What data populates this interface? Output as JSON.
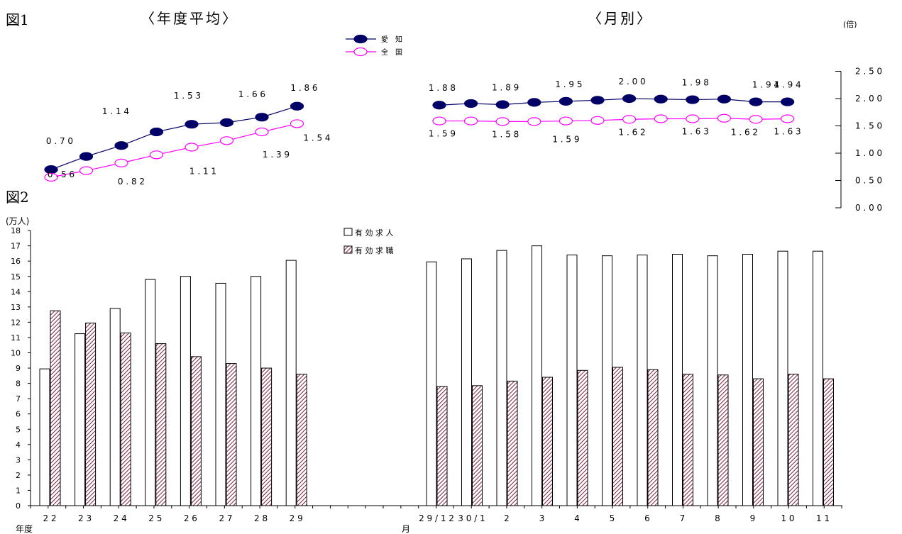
{
  "fig1": {
    "label": "図1",
    "title_annual": "〈年度平均〉",
    "title_monthly": "〈月別〉",
    "unit": "(倍)"
  },
  "fig2": {
    "label": "図2",
    "unit": "(万人)",
    "annual_axis_label": "年度",
    "monthly_axis_label": "月"
  },
  "colors": {
    "aichi": "#000066",
    "national": "#ff00ff",
    "shokushoku": "#7a1f3d",
    "axis": "#000000"
  },
  "chart_data": [
    {
      "type": "line",
      "panel": "annual",
      "categories": [
        "22",
        "23",
        "24",
        "25",
        "26",
        "27",
        "28",
        "29"
      ],
      "series": [
        {
          "name": "愛　知",
          "values": [
            0.7,
            0.94,
            1.14,
            1.39,
            1.53,
            1.56,
            1.66,
            1.86
          ]
        },
        {
          "name": "全　国",
          "values": [
            0.56,
            0.68,
            0.82,
            0.97,
            1.11,
            1.23,
            1.39,
            1.54
          ]
        }
      ],
      "labels": {
        "aichi": [
          {
            "i": 0,
            "text": "0.70"
          },
          {
            "i": 2,
            "text": "1.14"
          },
          {
            "i": 4,
            "text": "1.53"
          },
          {
            "i": 6,
            "text": "1.66"
          },
          {
            "i": 7,
            "text": "1.86"
          }
        ],
        "national": [
          {
            "i": 0,
            "text": "0.56"
          },
          {
            "i": 2,
            "text": "0.82"
          },
          {
            "i": 4,
            "text": "1.11"
          },
          {
            "i": 6,
            "text": "1.39"
          },
          {
            "i": 7,
            "text": "1.54"
          }
        ]
      },
      "ylim": [
        0,
        2.5
      ]
    },
    {
      "type": "line",
      "panel": "monthly",
      "categories": [
        "29/12",
        "30/1",
        "2",
        "3",
        "4",
        "5",
        "6",
        "7",
        "8",
        "9",
        "10",
        "11"
      ],
      "series": [
        {
          "name": "愛　知",
          "values": [
            1.88,
            1.91,
            1.89,
            1.93,
            1.95,
            1.97,
            2.0,
            1.99,
            1.98,
            1.99,
            1.94,
            1.94
          ]
        },
        {
          "name": "全　国",
          "values": [
            1.59,
            1.59,
            1.58,
            1.58,
            1.59,
            1.6,
            1.62,
            1.63,
            1.63,
            1.64,
            1.62,
            1.63
          ]
        }
      ],
      "labels": {
        "aichi": [
          {
            "i": 0,
            "text": "1.88"
          },
          {
            "i": 2,
            "text": "1.89"
          },
          {
            "i": 4,
            "text": "1.95"
          },
          {
            "i": 6,
            "text": "2.00"
          },
          {
            "i": 8,
            "text": "1.98"
          },
          {
            "i": 10,
            "text": "1.94"
          },
          {
            "i": 11,
            "text": "1.94"
          }
        ],
        "national": [
          {
            "i": 0,
            "text": "1.59"
          },
          {
            "i": 2,
            "text": "1.58"
          },
          {
            "i": 4,
            "text": "1.59"
          },
          {
            "i": 6,
            "text": "1.62"
          },
          {
            "i": 8,
            "text": "1.63"
          },
          {
            "i": 10,
            "text": "1.62"
          },
          {
            "i": 11,
            "text": "1.63"
          }
        ]
      },
      "yticks": [
        "0.00",
        "0.50",
        "1.00",
        "1.50",
        "2.00",
        "2.50"
      ],
      "ylim": [
        0,
        2.5
      ]
    },
    {
      "type": "bar",
      "panel": "annual",
      "categories": [
        "22",
        "23",
        "24",
        "25",
        "26",
        "27",
        "28",
        "29"
      ],
      "series": [
        {
          "name": "有効求人",
          "values": [
            8.95,
            11.25,
            12.9,
            14.8,
            15.0,
            14.55,
            15.0,
            16.05
          ]
        },
        {
          "name": "有効求職",
          "values": [
            12.75,
            11.95,
            11.3,
            10.6,
            9.75,
            9.3,
            9.0,
            8.6
          ]
        }
      ],
      "ylim": [
        0,
        18
      ]
    },
    {
      "type": "bar",
      "panel": "monthly",
      "categories": [
        "29/12",
        "30/1",
        "2",
        "3",
        "4",
        "5",
        "6",
        "7",
        "8",
        "9",
        "10",
        "11"
      ],
      "series": [
        {
          "name": "有効求人",
          "values": [
            15.95,
            16.15,
            16.7,
            17.0,
            16.4,
            16.35,
            16.4,
            16.45,
            16.35,
            16.45,
            16.65,
            16.65
          ]
        },
        {
          "name": "有効求職",
          "values": [
            7.8,
            7.85,
            8.15,
            8.4,
            8.85,
            9.05,
            8.9,
            8.6,
            8.55,
            8.3,
            8.6,
            8.3
          ]
        }
      ],
      "yticks": [
        "0",
        "1",
        "2",
        "3",
        "4",
        "5",
        "6",
        "7",
        "8",
        "9",
        "10",
        "11",
        "12",
        "13",
        "14",
        "15",
        "16",
        "17",
        "18"
      ],
      "ylim": [
        0,
        18
      ]
    }
  ]
}
